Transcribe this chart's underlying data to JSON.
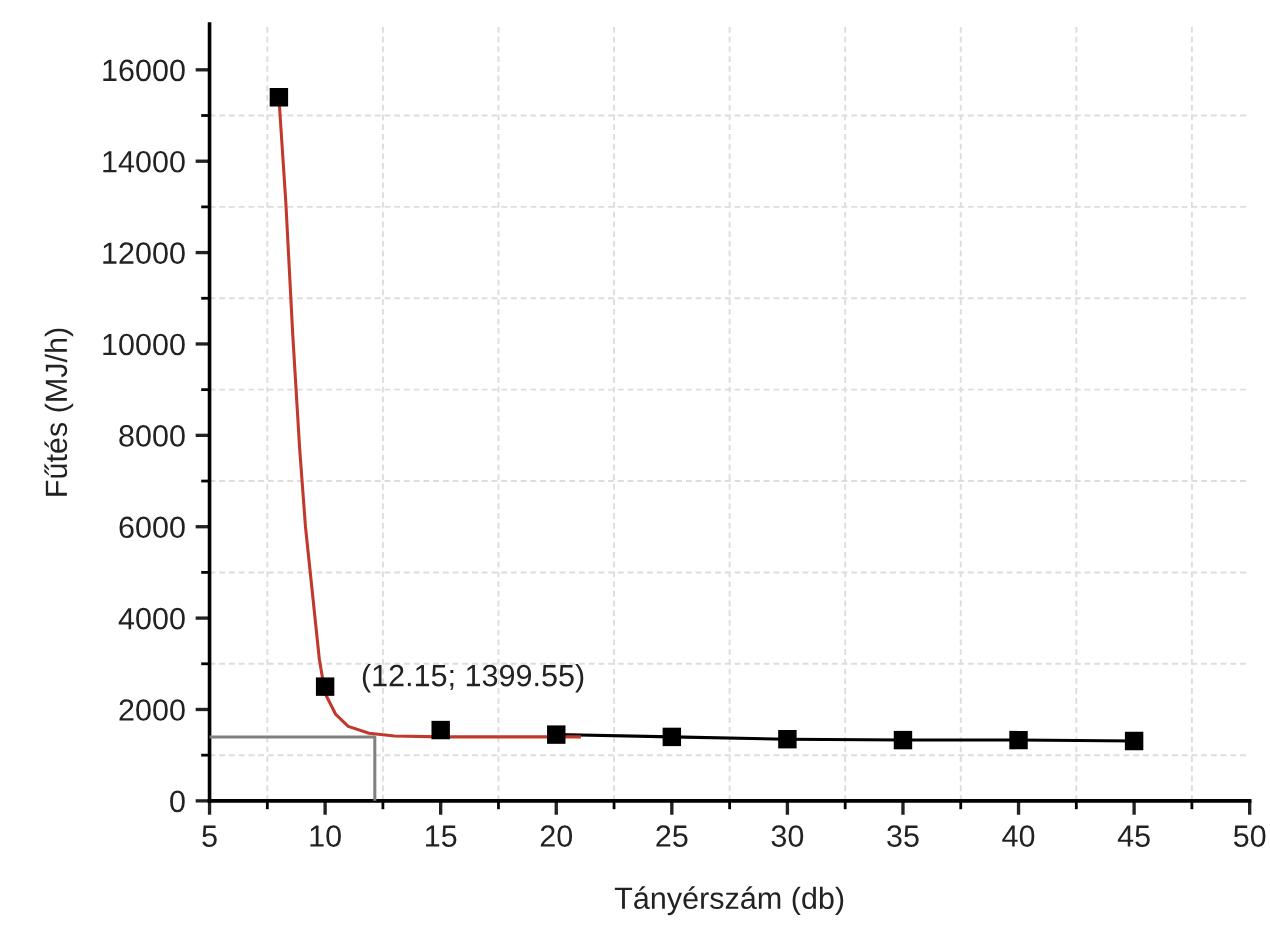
{
  "chart_data": {
    "type": "line",
    "xlabel": "Tányérszám (db)",
    "ylabel": "Fűtés (MJ/h)",
    "xlim": [
      5,
      50
    ],
    "xticks": [
      5,
      {
        "value": 7.5,
        "label": null
      },
      10,
      {
        "value": 12.5,
        "label": null
      },
      15,
      {
        "value": 17.5,
        "label": null
      },
      20,
      {
        "value": 22.5,
        "label": null
      },
      25,
      {
        "value": 27.5,
        "label": null
      },
      30,
      {
        "value": 32.5,
        "label": null
      },
      35,
      {
        "value": 37.5,
        "label": null
      },
      40,
      {
        "value": 42.5,
        "label": null
      },
      45,
      {
        "value": 47.5,
        "label": null
      },
      50
    ],
    "ylim": [
      0,
      17000
    ],
    "yticks": [
      0,
      {
        "value": 1000,
        "label": null
      },
      2000,
      {
        "value": 3000,
        "label": null
      },
      4000,
      {
        "value": 5000,
        "label": null
      },
      6000,
      {
        "value": 7000,
        "label": null
      },
      8000,
      {
        "value": 9000,
        "label": null
      },
      10000,
      {
        "value": 11000,
        "label": null
      },
      12000,
      {
        "value": 13000,
        "label": null
      },
      14000,
      {
        "value": 15000,
        "label": null
      },
      16000
    ],
    "grid": true,
    "series": [
      {
        "color": "#808080",
        "x": [
          5,
          12.15,
          12.15
        ],
        "values": [
          1399.55,
          1399.55,
          0
        ]
      },
      {
        "color": "#000000",
        "x": [
          20,
          25,
          30,
          35,
          40,
          45
        ],
        "values": [
          1450,
          1400,
          1350,
          1330,
          1330,
          1310
        ]
      },
      {
        "color": "#c0392b",
        "x": [
          8,
          8.3,
          8.6,
          8.9,
          9.15,
          9.45,
          9.75,
          10,
          10.45,
          11,
          11.9,
          13,
          15,
          18,
          21
        ],
        "values": [
          15400,
          13100,
          10200,
          7700,
          6000,
          4550,
          3100,
          2350,
          1900,
          1630,
          1480,
          1420,
          1400,
          1400,
          1400
        ]
      },
      {
        "type": "scatter",
        "color": "#000000",
        "marker": "square",
        "x": [
          8,
          10,
          15,
          20,
          25,
          30,
          35,
          40,
          45
        ],
        "values": [
          15400,
          2500,
          1550,
          1450,
          1400,
          1350,
          1330,
          1330,
          1310
        ]
      }
    ],
    "annotations": [
      {
        "text": "(12.15; 1399.55)",
        "x": 12.15,
        "y": 1399.55
      }
    ]
  }
}
